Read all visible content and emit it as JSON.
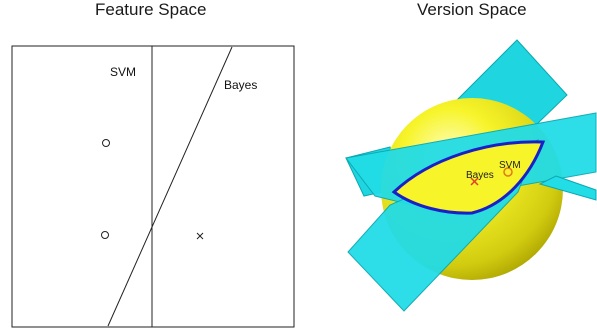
{
  "feature_space": {
    "title": "Feature Space",
    "svm_label": "SVM",
    "bayes_label": "Bayes",
    "points": [
      {
        "marker": "circle"
      },
      {
        "marker": "circle"
      },
      {
        "marker": "cross"
      }
    ]
  },
  "version_space": {
    "title": "Version Space",
    "bayes_label": "Bayes",
    "svm_label": "SVM",
    "colors": {
      "sphere": "#f2ef1a",
      "plane": "#22dce6",
      "region_outline": "#1a20c8",
      "bayes_marker": "#e0402a",
      "svm_marker": "#e07a1a"
    }
  }
}
